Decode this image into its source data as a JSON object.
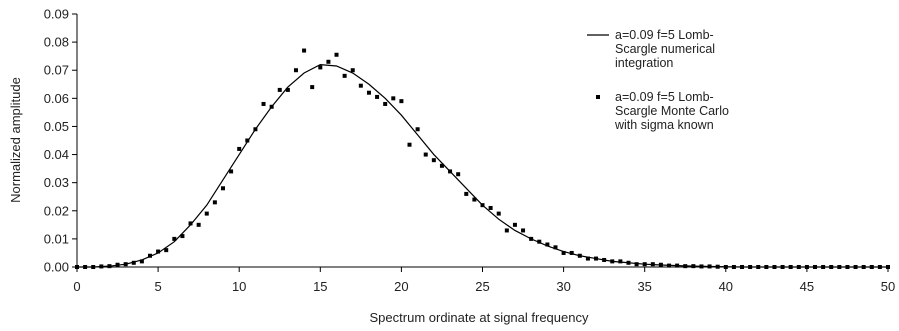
{
  "chart_data": {
    "type": "line_scatter",
    "x_label": "Spectrum ordinate at signal frequency",
    "y_label": "Normalized amplitude",
    "xlim": [
      0,
      50
    ],
    "xticks": [
      0,
      5,
      10,
      15,
      20,
      25,
      30,
      35,
      40,
      45,
      50
    ],
    "ylim": [
      0,
      0.09
    ],
    "yticks": [
      {
        "value": 0,
        "label": "0.00"
      },
      {
        "value": 0.01,
        "label": "0.01"
      },
      {
        "value": 0.02,
        "label": "0.02"
      },
      {
        "value": 0.03,
        "label": "0.03"
      },
      {
        "value": 0.04,
        "label": "0.04"
      },
      {
        "value": 0.05,
        "label": "0.05"
      },
      {
        "value": 0.06,
        "label": "0.06"
      },
      {
        "value": 0.07,
        "label": "0.07"
      },
      {
        "value": 0.08,
        "label": "0.08"
      },
      {
        "value": 0.09,
        "label": "0.09"
      }
    ],
    "grid": false,
    "legend": "upper right",
    "series": [
      {
        "name": "a=0.09 f=5 Lomb-Scargle numerical integration",
        "kind": "line",
        "color": "#000000",
        "x": [
          0,
          1,
          2,
          3,
          4,
          5,
          6,
          7,
          8,
          9,
          10,
          11,
          12,
          13,
          14,
          15,
          16,
          17,
          18,
          19,
          20,
          21,
          22,
          23,
          24,
          25,
          26,
          27,
          28,
          29,
          30,
          31,
          32,
          33,
          34,
          35,
          36,
          37,
          38,
          39,
          40,
          41,
          42,
          43,
          44,
          45,
          46,
          47,
          48,
          49,
          50
        ],
        "values": [
          0,
          0,
          0.0003,
          0.001,
          0.0025,
          0.005,
          0.009,
          0.015,
          0.022,
          0.031,
          0.04,
          0.049,
          0.057,
          0.064,
          0.069,
          0.072,
          0.0715,
          0.069,
          0.065,
          0.06,
          0.054,
          0.047,
          0.04,
          0.034,
          0.028,
          0.022,
          0.017,
          0.013,
          0.01,
          0.0075,
          0.0055,
          0.004,
          0.003,
          0.002,
          0.0015,
          0.001,
          0.0007,
          0.0005,
          0.0003,
          0.0002,
          0.0001,
          0,
          0,
          0,
          0,
          0,
          0,
          0,
          0,
          0,
          0
        ]
      },
      {
        "name": "a=0.09 f=5 Lomb-Scargle Monte Carlo with sigma known",
        "kind": "scatter",
        "color": "#000000",
        "x": [
          0,
          0.5,
          1,
          1.5,
          2,
          2.5,
          3,
          3.5,
          4,
          4.5,
          5,
          5.5,
          6,
          6.5,
          7,
          7.5,
          8,
          8.5,
          9,
          9.5,
          10,
          10.5,
          11,
          11.5,
          12,
          12.5,
          13,
          13.5,
          14,
          14.5,
          15,
          15.5,
          16,
          16.5,
          17,
          17.5,
          18,
          18.5,
          19,
          19.5,
          20,
          20.5,
          21,
          21.5,
          22,
          22.5,
          23,
          23.5,
          24,
          24.5,
          25,
          25.5,
          26,
          26.5,
          27,
          27.5,
          28,
          28.5,
          29,
          29.5,
          30,
          30.5,
          31,
          31.5,
          32,
          32.5,
          33,
          33.5,
          34,
          34.5,
          35,
          35.5,
          36,
          36.5,
          37,
          37.5,
          38,
          38.5,
          39,
          39.5,
          40,
          40.5,
          41,
          41.5,
          42,
          42.5,
          43,
          43.5,
          44,
          44.5,
          45,
          45.5,
          46,
          46.5,
          47,
          47.5,
          48,
          48.5,
          49,
          49.5,
          50
        ],
        "values": [
          0,
          0,
          0,
          0.0002,
          0.0003,
          0.0008,
          0.001,
          0.0015,
          0.002,
          0.004,
          0.0055,
          0.006,
          0.01,
          0.011,
          0.0155,
          0.015,
          0.019,
          0.023,
          0.028,
          0.034,
          0.042,
          0.045,
          0.049,
          0.058,
          0.057,
          0.063,
          0.063,
          0.07,
          0.077,
          0.064,
          0.071,
          0.073,
          0.0755,
          0.068,
          0.07,
          0.0645,
          0.062,
          0.0605,
          0.058,
          0.06,
          0.059,
          0.0435,
          0.049,
          0.04,
          0.038,
          0.036,
          0.034,
          0.033,
          0.026,
          0.024,
          0.022,
          0.021,
          0.019,
          0.013,
          0.015,
          0.013,
          0.01,
          0.009,
          0.008,
          0.007,
          0.005,
          0.005,
          0.004,
          0.003,
          0.003,
          0.0025,
          0.002,
          0.002,
          0.0015,
          0.001,
          0.001,
          0.001,
          0.0008,
          0.0005,
          0.0005,
          0.0003,
          0.0003,
          0.0002,
          0.0002,
          0.0001,
          0,
          0,
          0,
          0,
          0,
          0,
          0,
          0,
          0,
          0,
          0,
          0,
          0,
          0,
          0,
          0,
          0,
          0,
          0,
          0,
          0
        ]
      }
    ]
  }
}
